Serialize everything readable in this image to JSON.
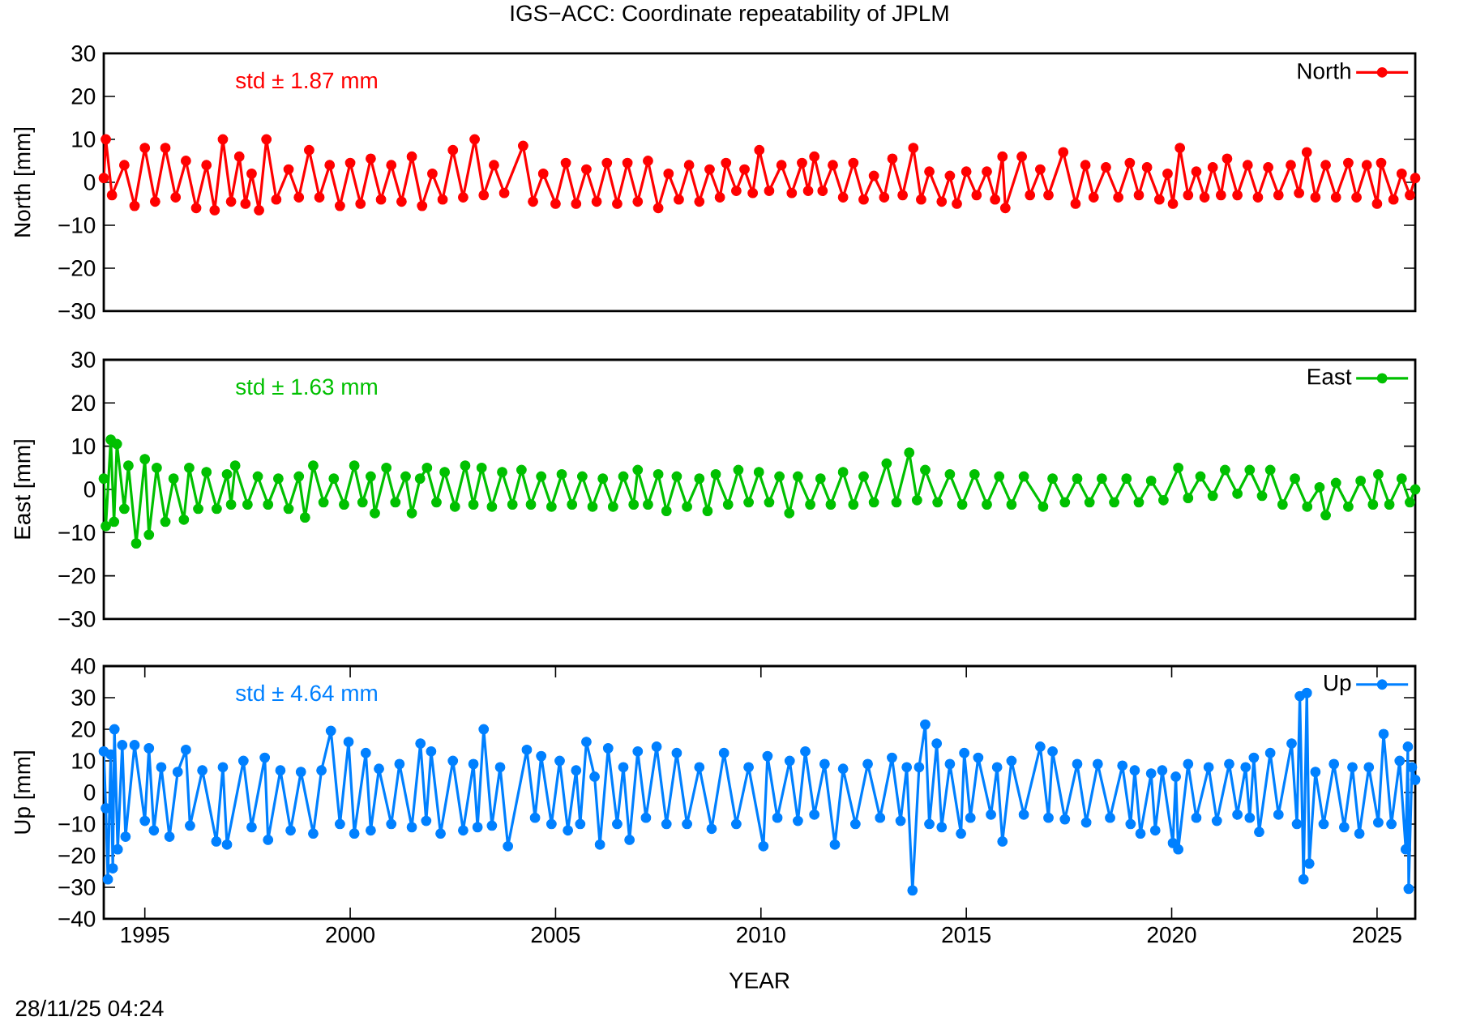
{
  "chart_data": [
    {
      "type": "line",
      "title": "IGS−ACC: Coordinate repeatability of JPLM",
      "ylabel": "North [mm]",
      "annotations": [
        "std ± 1.87 mm"
      ],
      "legend": "top right",
      "marker": "circle",
      "tick_labels": "y",
      "xlim": [
        1994.0,
        2025.93
      ],
      "ylim": [
        -30,
        30
      ],
      "yticks": [
        {
          "value": -30,
          "label": "−30"
        },
        {
          "value": -20,
          "label": "−20"
        },
        {
          "value": -10,
          "label": "−10"
        },
        0,
        10,
        20,
        30
      ],
      "x": [
        1994.0,
        1994.05,
        1994.2,
        1994.5,
        1994.75,
        1995.0,
        1995.25,
        1995.5,
        1995.75,
        1996.0,
        1996.25,
        1996.5,
        1996.7,
        1996.9,
        1997.1,
        1997.3,
        1997.45,
        1997.6,
        1997.78,
        1997.96,
        1998.2,
        1998.5,
        1998.75,
        1999.0,
        1999.25,
        1999.5,
        1999.75,
        2000.0,
        2000.25,
        2000.5,
        2000.75,
        2001.0,
        2001.25,
        2001.5,
        2001.75,
        2002.0,
        2002.25,
        2002.5,
        2002.75,
        2003.03,
        2003.25,
        2003.5,
        2003.75,
        2004.21,
        2004.45,
        2004.7,
        2005.0,
        2005.25,
        2005.5,
        2005.75,
        2006.0,
        2006.25,
        2006.5,
        2006.75,
        2007.0,
        2007.25,
        2007.5,
        2007.75,
        2008.0,
        2008.25,
        2008.5,
        2008.75,
        2009.0,
        2009.15,
        2009.4,
        2009.6,
        2009.8,
        2009.96,
        2010.2,
        2010.5,
        2010.75,
        2011.0,
        2011.15,
        2011.3,
        2011.5,
        2011.75,
        2012.0,
        2012.25,
        2012.5,
        2012.75,
        2013.0,
        2013.2,
        2013.45,
        2013.71,
        2013.9,
        2014.1,
        2014.4,
        2014.6,
        2014.77,
        2015.0,
        2015.25,
        2015.5,
        2015.7,
        2015.88,
        2015.95,
        2016.35,
        2016.55,
        2016.8,
        2017.0,
        2017.36,
        2017.66,
        2017.9,
        2018.1,
        2018.4,
        2018.7,
        2018.98,
        2019.2,
        2019.4,
        2019.7,
        2019.9,
        2020.03,
        2020.2,
        2020.4,
        2020.6,
        2020.8,
        2021.0,
        2021.2,
        2021.35,
        2021.6,
        2021.85,
        2022.1,
        2022.35,
        2022.6,
        2022.9,
        2023.1,
        2023.29,
        2023.5,
        2023.75,
        2024.0,
        2024.3,
        2024.5,
        2024.75,
        2025.0,
        2025.1,
        2025.4,
        2025.6,
        2025.8,
        2025.93
      ],
      "series": [
        {
          "name": "North",
          "color": "#ff0000",
          "values": [
            1,
            10,
            -3,
            4,
            -5.5,
            8,
            -4.5,
            8,
            -3.5,
            5,
            -6,
            4,
            -6.5,
            10,
            -4.5,
            6,
            -5,
            2,
            -6.5,
            10,
            -4,
            3,
            -3.5,
            7.5,
            -3.5,
            4,
            -5.5,
            4.5,
            -5,
            5.5,
            -4,
            4,
            -4.5,
            6,
            -5.5,
            2,
            -4,
            7.5,
            -3.5,
            10,
            -3,
            4,
            -2.5,
            8.5,
            -4.5,
            2,
            -5,
            4.5,
            -5,
            3,
            -4.5,
            4.5,
            -5,
            4.5,
            -4.5,
            5,
            -6,
            2,
            -4,
            4,
            -4.5,
            3,
            -3.5,
            4.5,
            -2,
            3,
            -2.5,
            7.5,
            -2,
            4,
            -2.5,
            4.5,
            -2,
            6,
            -2,
            4,
            -3.5,
            4.5,
            -4,
            1.5,
            -3.5,
            5.5,
            -3,
            8,
            -4,
            2.5,
            -4.5,
            1.5,
            -5,
            2.5,
            -3,
            2.5,
            -4,
            6,
            -6,
            6,
            -3,
            3,
            -3,
            7,
            -5,
            4,
            -3.5,
            3.5,
            -3.5,
            4.5,
            -3,
            3.5,
            -4,
            2,
            -5,
            8,
            -3,
            2.5,
            -3.5,
            3.5,
            -3,
            5.5,
            -3,
            4,
            -3.5,
            3.5,
            -3,
            4,
            -2.5,
            7,
            -3.5,
            4,
            -3.5,
            4.5,
            -3.5,
            4,
            -5,
            4.5,
            -4,
            2,
            -3,
            1
          ]
        }
      ]
    },
    {
      "type": "line",
      "ylabel": "East [mm]",
      "annotations": [
        "std ± 1.63 mm"
      ],
      "legend": "top right",
      "marker": "circle",
      "tick_labels": "y",
      "xlim": [
        1994.0,
        2025.93
      ],
      "ylim": [
        -30,
        30
      ],
      "yticks": [
        {
          "value": -30,
          "label": "−30"
        },
        {
          "value": -20,
          "label": "−20"
        },
        {
          "value": -10,
          "label": "−10"
        },
        0,
        10,
        20,
        30
      ],
      "x": [
        1994.0,
        1994.05,
        1994.17,
        1994.25,
        1994.32,
        1994.5,
        1994.6,
        1994.79,
        1995.0,
        1995.1,
        1995.29,
        1995.5,
        1995.7,
        1995.95,
        1996.08,
        1996.3,
        1996.5,
        1996.75,
        1997.0,
        1997.1,
        1997.2,
        1997.5,
        1997.75,
        1998.0,
        1998.25,
        1998.5,
        1998.75,
        1998.9,
        1999.1,
        1999.35,
        1999.6,
        1999.85,
        2000.1,
        2000.3,
        2000.5,
        2000.6,
        2000.88,
        2001.1,
        2001.35,
        2001.5,
        2001.7,
        2001.87,
        2002.1,
        2002.3,
        2002.55,
        2002.8,
        2003.0,
        2003.2,
        2003.45,
        2003.7,
        2003.95,
        2004.17,
        2004.4,
        2004.65,
        2004.9,
        2005.15,
        2005.4,
        2005.65,
        2005.9,
        2006.15,
        2006.4,
        2006.65,
        2006.9,
        2007.0,
        2007.25,
        2007.5,
        2007.7,
        2007.95,
        2008.2,
        2008.5,
        2008.7,
        2008.9,
        2009.2,
        2009.45,
        2009.7,
        2009.95,
        2010.2,
        2010.45,
        2010.69,
        2010.9,
        2011.2,
        2011.45,
        2011.7,
        2012.0,
        2012.25,
        2012.5,
        2012.75,
        2013.06,
        2013.3,
        2013.61,
        2013.8,
        2014.0,
        2014.3,
        2014.6,
        2014.9,
        2015.2,
        2015.5,
        2015.8,
        2016.1,
        2016.4,
        2016.87,
        2017.1,
        2017.4,
        2017.7,
        2018.0,
        2018.3,
        2018.6,
        2018.9,
        2019.2,
        2019.5,
        2019.8,
        2020.16,
        2020.4,
        2020.7,
        2021.0,
        2021.3,
        2021.6,
        2021.9,
        2022.2,
        2022.4,
        2022.7,
        2023.0,
        2023.3,
        2023.6,
        2023.75,
        2024.0,
        2024.3,
        2024.6,
        2024.9,
        2025.03,
        2025.3,
        2025.6,
        2025.8,
        2025.93
      ],
      "series": [
        {
          "name": "East",
          "color": "#00c000",
          "values": [
            2.5,
            -8.5,
            11.5,
            -7.5,
            10.5,
            -4.5,
            5.5,
            -12.5,
            7,
            -10.5,
            5,
            -7.5,
            2.5,
            -7,
            5,
            -4.5,
            4,
            -4.5,
            3.5,
            -3.5,
            5.5,
            -3.5,
            3,
            -3.5,
            2.5,
            -4.5,
            3,
            -6.5,
            5.5,
            -3,
            2.5,
            -3.5,
            5.5,
            -3,
            3,
            -5.5,
            5,
            -3,
            3,
            -5.5,
            2.5,
            5,
            -3,
            4,
            -4,
            5.5,
            -3.5,
            5,
            -4,
            4,
            -3.5,
            4.5,
            -3.5,
            3,
            -4,
            3.5,
            -3.5,
            3,
            -4,
            2.5,
            -4,
            3,
            -3.5,
            4.5,
            -3.5,
            3.5,
            -5,
            3,
            -4,
            2.5,
            -5,
            3.5,
            -3.5,
            4.5,
            -3,
            4,
            -3,
            3,
            -5.5,
            3,
            -3.5,
            2.5,
            -3.5,
            4,
            -3.5,
            3,
            -3,
            6,
            -3,
            8.5,
            -2.5,
            4.5,
            -3,
            3.5,
            -3.5,
            3.5,
            -3.5,
            3,
            -3.5,
            3,
            -4,
            2.5,
            -3,
            2.5,
            -3,
            2.5,
            -3,
            2.5,
            -3,
            2,
            -2.5,
            5,
            -2,
            3,
            -1.5,
            4.5,
            -1,
            4.5,
            -1.5,
            4.5,
            -3.5,
            2.5,
            -4,
            0.5,
            -6,
            1.5,
            -4,
            2,
            -3.5,
            3.5,
            -3.5,
            2.5,
            -3,
            0
          ]
        }
      ]
    },
    {
      "type": "line",
      "xlabel": "YEAR",
      "ylabel": "Up [mm]",
      "annotations": [
        "std ± 4.64 mm",
        "28/11/25 04:24"
      ],
      "legend": "top right",
      "marker": "circle",
      "xlim": [
        1994.0,
        2025.93
      ],
      "ylim": [
        -40,
        40
      ],
      "xticks": [
        1995,
        2000,
        2005,
        2010,
        2015,
        2020,
        2025
      ],
      "yticks": [
        {
          "value": -40,
          "label": "−40"
        },
        {
          "value": -30,
          "label": "−30"
        },
        {
          "value": -20,
          "label": "−20"
        },
        {
          "value": -10,
          "label": "−10"
        },
        0,
        10,
        20,
        30,
        40
      ],
      "x": [
        1994.0,
        1994.05,
        1994.1,
        1994.17,
        1994.22,
        1994.26,
        1994.34,
        1994.45,
        1994.53,
        1994.75,
        1995.0,
        1995.1,
        1995.22,
        1995.4,
        1995.6,
        1995.8,
        1996.0,
        1996.1,
        1996.4,
        1996.74,
        1996.9,
        1997.0,
        1997.4,
        1997.6,
        1997.92,
        1998.0,
        1998.3,
        1998.55,
        1998.8,
        1999.1,
        1999.3,
        1999.53,
        1999.75,
        1999.96,
        2000.1,
        2000.38,
        2000.5,
        2000.7,
        2001.0,
        2001.2,
        2001.5,
        2001.71,
        2001.85,
        2001.97,
        2002.2,
        2002.5,
        2002.75,
        2003.0,
        2003.1,
        2003.25,
        2003.45,
        2003.65,
        2003.84,
        2004.3,
        2004.5,
        2004.65,
        2004.9,
        2005.1,
        2005.3,
        2005.5,
        2005.6,
        2005.75,
        2005.95,
        2006.08,
        2006.28,
        2006.5,
        2006.65,
        2006.8,
        2007.0,
        2007.2,
        2007.46,
        2007.7,
        2007.95,
        2008.2,
        2008.5,
        2008.8,
        2009.1,
        2009.4,
        2009.7,
        2010.06,
        2010.16,
        2010.4,
        2010.7,
        2010.9,
        2011.08,
        2011.3,
        2011.55,
        2011.8,
        2012.0,
        2012.3,
        2012.6,
        2012.9,
        2013.19,
        2013.4,
        2013.55,
        2013.69,
        2013.85,
        2014.0,
        2014.1,
        2014.28,
        2014.4,
        2014.6,
        2014.87,
        2014.95,
        2015.1,
        2015.29,
        2015.6,
        2015.75,
        2015.88,
        2016.1,
        2016.4,
        2016.8,
        2017.0,
        2017.1,
        2017.4,
        2017.7,
        2017.92,
        2018.2,
        2018.5,
        2018.8,
        2019.0,
        2019.1,
        2019.24,
        2019.5,
        2019.6,
        2019.77,
        2020.03,
        2020.1,
        2020.16,
        2020.4,
        2020.6,
        2020.9,
        2021.1,
        2021.4,
        2021.6,
        2021.8,
        2021.9,
        2022.0,
        2022.13,
        2022.4,
        2022.6,
        2022.92,
        2023.05,
        2023.12,
        2023.21,
        2023.29,
        2023.35,
        2023.5,
        2023.7,
        2023.95,
        2024.2,
        2024.4,
        2024.57,
        2024.8,
        2025.03,
        2025.16,
        2025.35,
        2025.55,
        2025.7,
        2025.75,
        2025.77,
        2025.85,
        2025.93
      ],
      "series": [
        {
          "name": "Up",
          "color": "#0080ff",
          "values": [
            13,
            -5,
            -27.5,
            12,
            -24,
            20,
            -18,
            15,
            -14,
            15,
            -9,
            14,
            -12,
            8,
            -14,
            6.5,
            13.5,
            -10.5,
            7,
            -15.5,
            8,
            -16.5,
            10,
            -11,
            11,
            -15,
            7,
            -12,
            6.5,
            -13,
            7,
            19.5,
            -10,
            16,
            -13,
            12.5,
            -12,
            7.5,
            -10,
            9,
            -11,
            15.5,
            -9,
            13,
            -13,
            10,
            -12,
            9,
            -11,
            20,
            -10.5,
            8,
            -17,
            13.5,
            -8,
            11.5,
            -10,
            10,
            -12,
            7,
            -10,
            16,
            5,
            -16.5,
            14,
            -10,
            8,
            -15,
            13,
            -8,
            14.5,
            -10,
            12.5,
            -10,
            8,
            -11.5,
            12.5,
            -10,
            8,
            -17,
            11.5,
            -8,
            10,
            -9,
            13,
            -7,
            9,
            -16.5,
            7.5,
            -10,
            9,
            -8,
            11,
            -9,
            8,
            -31,
            8,
            21.5,
            -10,
            15.5,
            -11,
            9,
            -13,
            12.5,
            -8,
            11,
            -7,
            8,
            -15.5,
            10,
            -7,
            14.5,
            -8,
            13,
            -8.5,
            9,
            -9.5,
            9,
            -8,
            8.5,
            -10,
            7,
            -13,
            6,
            -12,
            7,
            -16,
            5,
            -18,
            9,
            -8,
            8,
            -9,
            9,
            -7,
            8,
            -8,
            11,
            -12.5,
            12.5,
            -7,
            15.5,
            -10,
            30.5,
            -27.5,
            31.5,
            -22.5,
            6.5,
            -10,
            9,
            -11,
            8,
            -13,
            8,
            -9.5,
            18.5,
            -10,
            10,
            -18,
            14.5,
            -30.5,
            8,
            4
          ]
        }
      ]
    }
  ]
}
